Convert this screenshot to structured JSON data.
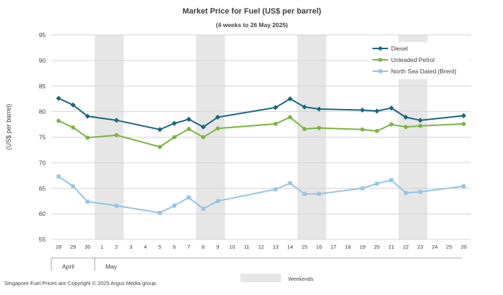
{
  "colors": {
    "diesel": "#1a6680",
    "petrol": "#7ab441",
    "brent": "#94c4e6",
    "weekend": "#e6e6e6",
    "grid": "#d4d4d4",
    "text": "#404040"
  },
  "footer": {
    "copyright": "Singapore  Fuel Prices are Copyright © 2025 Argus Media group.",
    "weekends_label": "Weekends"
  },
  "chart_data": {
    "type": "line",
    "title": "Market Price for Fuel  (US$  per barrel)",
    "subtitle": "(4 weeks to 26 May  2025)",
    "ylabel": "(US$ per barrel)",
    "ylim": [
      55,
      95
    ],
    "yticks": [
      55,
      60,
      65,
      70,
      75,
      80,
      85,
      90,
      95
    ],
    "grid": true,
    "legend_position": "top-right",
    "categories": [
      "28",
      "29",
      "30",
      "1",
      "2",
      "3",
      "4",
      "5",
      "6",
      "7",
      "8",
      "9",
      "10",
      "11",
      "12",
      "13",
      "14",
      "15",
      "16",
      "17",
      "18",
      "19",
      "20",
      "21",
      "22",
      "23",
      "24",
      "25",
      "26"
    ],
    "month_labels": [
      {
        "label": "April",
        "start_index": 0
      },
      {
        "label": "May",
        "start_index": 3
      }
    ],
    "weekend_indices": [
      [
        3,
        4
      ],
      [
        10,
        11
      ],
      [
        17,
        18
      ],
      [
        24,
        25
      ]
    ],
    "series": [
      {
        "name": "Diesel",
        "color_key": "diesel",
        "marker": "diamond",
        "values": [
          82.6,
          81.3,
          79.1,
          null,
          78.3,
          null,
          null,
          76.5,
          77.7,
          78.5,
          77.0,
          78.9,
          null,
          null,
          null,
          80.8,
          82.5,
          80.9,
          80.5,
          null,
          null,
          80.3,
          80.1,
          80.7,
          78.9,
          78.3,
          null,
          null,
          79.2
        ]
      },
      {
        "name": "Unleaded Petrol",
        "color_key": "petrol",
        "marker": "circle",
        "values": [
          78.2,
          76.9,
          74.9,
          null,
          75.4,
          null,
          null,
          73.1,
          75.0,
          76.6,
          75.0,
          76.7,
          null,
          null,
          null,
          77.6,
          78.9,
          76.6,
          76.8,
          null,
          null,
          76.5,
          76.2,
          77.5,
          77.0,
          77.2,
          null,
          null,
          77.6
        ]
      },
      {
        "name": "North Sea Dated (Brent)",
        "color_key": "brent",
        "marker": "square",
        "values": [
          67.3,
          65.4,
          62.4,
          null,
          61.6,
          null,
          null,
          60.2,
          61.6,
          63.2,
          61.0,
          62.5,
          null,
          null,
          null,
          64.8,
          66.0,
          63.9,
          63.9,
          null,
          null,
          65.0,
          65.9,
          66.6,
          64.1,
          64.3,
          null,
          null,
          65.4
        ]
      }
    ]
  }
}
